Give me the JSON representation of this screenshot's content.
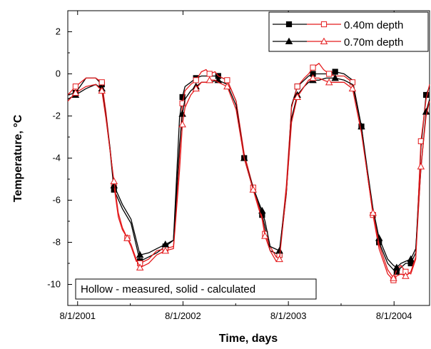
{
  "chart_data": {
    "type": "line",
    "xlabel": "Time, days",
    "ylabel": "Temperature, °C",
    "ylim": [
      -11,
      3
    ],
    "xlim": [
      "2001-06-28",
      "2004-12-02"
    ],
    "x_ticks": [
      "8/1/2001",
      "8/1/2002",
      "8/1/2003",
      "8/1/2004"
    ],
    "x_tick_dates": [
      "2001-08-01",
      "2002-08-01",
      "2003-08-01",
      "2004-08-01"
    ],
    "y_ticks": [
      2,
      0,
      -2,
      -4,
      -6,
      -8,
      -10
    ],
    "grid": false,
    "legend_position": "top-right",
    "annotation": "Hollow - measured, solid - calculated",
    "legend": [
      {
        "label": "0.40m depth",
        "filled_marker": "square",
        "hollow_marker": "square"
      },
      {
        "label": "0.70m depth",
        "filled_marker": "triangle",
        "hollow_marker": "triangle"
      }
    ],
    "series": [
      {
        "name": "0.40m depth",
        "kind": "calculated",
        "color": "#000000",
        "marker": "square-filled",
        "x": [
          "2001-06-28",
          "2001-07-25",
          "2001-08-30",
          "2001-10-03",
          "2001-10-24",
          "2001-11-07",
          "2001-11-21",
          "2001-12-05",
          "2002-01-03",
          "2002-02-02",
          "2002-03-05",
          "2002-04-04",
          "2002-05-02",
          "2002-06-01",
          "2002-06-29",
          "2002-07-20",
          "2002-07-30",
          "2002-08-08",
          "2002-08-28",
          "2002-09-15",
          "2002-10-04",
          "2002-11-01",
          "2002-12-01",
          "2003-01-01",
          "2003-02-01",
          "2003-03-01",
          "2003-04-01",
          "2003-04-20",
          "2003-05-02",
          "2003-05-12",
          "2003-05-30",
          "2003-07-01",
          "2003-07-25",
          "2003-08-12",
          "2003-09-01",
          "2003-09-25",
          "2003-10-10",
          "2003-10-25",
          "2003-11-15",
          "2003-12-10",
          "2004-01-10",
          "2004-02-10",
          "2004-03-10",
          "2004-04-10",
          "2004-05-01",
          "2004-05-20",
          "2004-06-10",
          "2004-07-10",
          "2004-07-30",
          "2004-08-10",
          "2004-08-25",
          "2004-09-10",
          "2004-09-28",
          "2004-10-15",
          "2004-11-02",
          "2004-11-20",
          "2004-12-02"
        ],
        "y": [
          -1.0,
          -0.9,
          -0.2,
          -0.2,
          -0.5,
          -2.0,
          -3.6,
          -5.5,
          -6.4,
          -7.1,
          -8.9,
          -8.7,
          -8.5,
          -8.2,
          -7.9,
          -2.1,
          -1.1,
          -0.6,
          -0.4,
          -0.2,
          -0.1,
          -0.1,
          -0.1,
          -0.3,
          -1.3,
          -4.0,
          -5.5,
          -6.2,
          -6.7,
          -7.3,
          -8.4,
          -8.6,
          -5.7,
          -1.5,
          -0.6,
          -0.3,
          -0.1,
          0.0,
          0.0,
          0.0,
          0.1,
          0.0,
          -0.3,
          -2.5,
          -4.8,
          -6.6,
          -8.0,
          -9.0,
          -9.3,
          -9.4,
          -9.2,
          -9.0,
          -9.0,
          -8.5,
          -3.5,
          -1.0,
          -0.6
        ]
      },
      {
        "name": "0.40m depth",
        "kind": "measured",
        "color": "#e41a1c",
        "marker": "square-hollow",
        "x": [
          "2001-06-28",
          "2001-07-25",
          "2001-08-30",
          "2001-10-03",
          "2001-10-24",
          "2001-11-07",
          "2001-11-21",
          "2001-12-05",
          "2001-12-20",
          "2002-01-03",
          "2002-01-20",
          "2002-02-02",
          "2002-02-20",
          "2002-03-05",
          "2002-04-04",
          "2002-05-02",
          "2002-06-01",
          "2002-06-29",
          "2002-07-20",
          "2002-07-30",
          "2002-08-08",
          "2002-08-28",
          "2002-09-15",
          "2002-10-04",
          "2002-10-20",
          "2002-11-01",
          "2002-11-20",
          "2002-12-01",
          "2003-01-01",
          "2003-02-01",
          "2003-03-01",
          "2003-04-01",
          "2003-04-20",
          "2003-05-02",
          "2003-05-12",
          "2003-05-30",
          "2003-06-20",
          "2003-07-01",
          "2003-07-25",
          "2003-08-12",
          "2003-09-01",
          "2003-09-25",
          "2003-10-10",
          "2003-10-25",
          "2003-11-15",
          "2003-12-01",
          "2003-12-20",
          "2004-01-10",
          "2004-02-10",
          "2004-03-10",
          "2004-04-10",
          "2004-05-01",
          "2004-05-20",
          "2004-06-10",
          "2004-07-10",
          "2004-07-30",
          "2004-08-10",
          "2004-08-25",
          "2004-09-10",
          "2004-09-28",
          "2004-10-15",
          "2004-11-02",
          "2004-11-20",
          "2004-12-02"
        ],
        "y": [
          -1.0,
          -0.6,
          -0.2,
          -0.2,
          -0.4,
          -1.8,
          -3.5,
          -5.3,
          -6.8,
          -7.4,
          -7.8,
          -8.2,
          -8.9,
          -9.0,
          -8.8,
          -8.4,
          -8.3,
          -8.2,
          -3.8,
          -1.4,
          -0.8,
          -0.5,
          -0.3,
          0.1,
          0.2,
          0.0,
          0.1,
          -0.1,
          -0.3,
          -1.3,
          -3.8,
          -5.4,
          -6.3,
          -6.8,
          -7.6,
          -8.2,
          -8.7,
          -8.6,
          -5.3,
          -1.6,
          -0.6,
          -0.2,
          0.0,
          0.3,
          0.5,
          0.2,
          0.0,
          -0.1,
          -0.1,
          -0.4,
          -2.6,
          -4.8,
          -6.7,
          -8.3,
          -9.5,
          -9.8,
          -9.3,
          -9.1,
          -9.4,
          -9.5,
          -8.8,
          -3.2,
          -1.2,
          -0.5
        ]
      },
      {
        "name": "0.70m depth",
        "kind": "calculated",
        "color": "#000000",
        "marker": "triangle-filled",
        "x": [
          "2001-06-28",
          "2001-07-25",
          "2001-08-30",
          "2001-10-03",
          "2001-10-24",
          "2001-11-07",
          "2001-11-21",
          "2001-12-05",
          "2002-01-03",
          "2002-02-02",
          "2002-03-05",
          "2002-04-04",
          "2002-05-02",
          "2002-06-01",
          "2002-06-29",
          "2002-07-20",
          "2002-07-30",
          "2002-08-08",
          "2002-08-28",
          "2002-09-15",
          "2002-10-04",
          "2002-11-01",
          "2002-12-01",
          "2003-01-01",
          "2003-02-01",
          "2003-03-01",
          "2003-04-01",
          "2003-04-20",
          "2003-05-02",
          "2003-05-12",
          "2003-05-30",
          "2003-07-01",
          "2003-07-25",
          "2003-08-12",
          "2003-09-01",
          "2003-09-25",
          "2003-10-10",
          "2003-10-25",
          "2003-11-15",
          "2003-12-10",
          "2004-01-10",
          "2004-02-10",
          "2004-03-10",
          "2004-04-10",
          "2004-05-01",
          "2004-05-20",
          "2004-06-10",
          "2004-07-10",
          "2004-07-30",
          "2004-08-10",
          "2004-08-25",
          "2004-09-10",
          "2004-09-28",
          "2004-10-15",
          "2004-11-02",
          "2004-11-20",
          "2004-12-02"
        ],
        "y": [
          -1.2,
          -1.0,
          -0.7,
          -0.5,
          -0.7,
          -2.0,
          -3.5,
          -5.3,
          -6.2,
          -6.9,
          -8.6,
          -8.5,
          -8.3,
          -8.1,
          -7.9,
          -3.4,
          -1.9,
          -1.2,
          -0.8,
          -0.6,
          -0.4,
          -0.4,
          -0.3,
          -0.5,
          -1.5,
          -4.0,
          -5.4,
          -6.1,
          -6.5,
          -7.0,
          -8.2,
          -8.4,
          -5.6,
          -2.1,
          -1.0,
          -0.6,
          -0.4,
          -0.3,
          -0.3,
          -0.2,
          -0.2,
          -0.3,
          -0.5,
          -2.5,
          -4.6,
          -6.4,
          -7.8,
          -8.8,
          -9.1,
          -9.2,
          -9.0,
          -8.9,
          -8.8,
          -8.3,
          -4.5,
          -1.8,
          -1.2
        ]
      },
      {
        "name": "0.70m depth",
        "kind": "measured",
        "color": "#e41a1c",
        "marker": "triangle-hollow",
        "x": [
          "2001-06-28",
          "2001-07-25",
          "2001-08-30",
          "2001-10-03",
          "2001-10-24",
          "2001-11-07",
          "2001-11-21",
          "2001-12-05",
          "2001-12-20",
          "2002-01-03",
          "2002-01-20",
          "2002-02-02",
          "2002-02-20",
          "2002-03-05",
          "2002-04-04",
          "2002-05-02",
          "2002-06-01",
          "2002-06-29",
          "2002-07-20",
          "2002-07-30",
          "2002-08-08",
          "2002-08-28",
          "2002-09-15",
          "2002-10-04",
          "2002-10-20",
          "2002-11-01",
          "2002-11-20",
          "2002-12-01",
          "2003-01-01",
          "2003-02-01",
          "2003-03-01",
          "2003-04-01",
          "2003-04-20",
          "2003-05-02",
          "2003-05-12",
          "2003-05-30",
          "2003-06-20",
          "2003-07-01",
          "2003-07-25",
          "2003-08-12",
          "2003-09-01",
          "2003-09-25",
          "2003-10-10",
          "2003-10-25",
          "2003-11-15",
          "2003-12-01",
          "2003-12-20",
          "2004-01-10",
          "2004-02-10",
          "2004-03-10",
          "2004-04-10",
          "2004-05-01",
          "2004-05-20",
          "2004-06-10",
          "2004-07-10",
          "2004-07-30",
          "2004-08-10",
          "2004-08-25",
          "2004-09-10",
          "2004-09-28",
          "2004-10-15",
          "2004-11-02",
          "2004-11-20",
          "2004-12-02"
        ],
        "y": [
          -1.3,
          -0.9,
          -0.6,
          -0.5,
          -0.8,
          -2.1,
          -3.6,
          -5.1,
          -6.6,
          -7.3,
          -7.8,
          -8.1,
          -8.8,
          -9.2,
          -9.0,
          -8.6,
          -8.4,
          -8.3,
          -4.6,
          -2.4,
          -1.6,
          -1.0,
          -0.7,
          -0.4,
          -0.4,
          -0.3,
          -0.3,
          -0.4,
          -0.6,
          -1.7,
          -4.0,
          -5.5,
          -6.4,
          -6.9,
          -7.7,
          -8.4,
          -8.9,
          -8.8,
          -5.6,
          -2.3,
          -1.1,
          -0.6,
          -0.3,
          -0.2,
          -0.2,
          -0.3,
          -0.4,
          -0.4,
          -0.4,
          -0.7,
          -2.8,
          -4.8,
          -6.6,
          -8.1,
          -9.3,
          -9.7,
          -9.6,
          -9.5,
          -9.6,
          -9.4,
          -8.7,
          -4.4,
          -2.0,
          -1.3
        ]
      }
    ]
  }
}
